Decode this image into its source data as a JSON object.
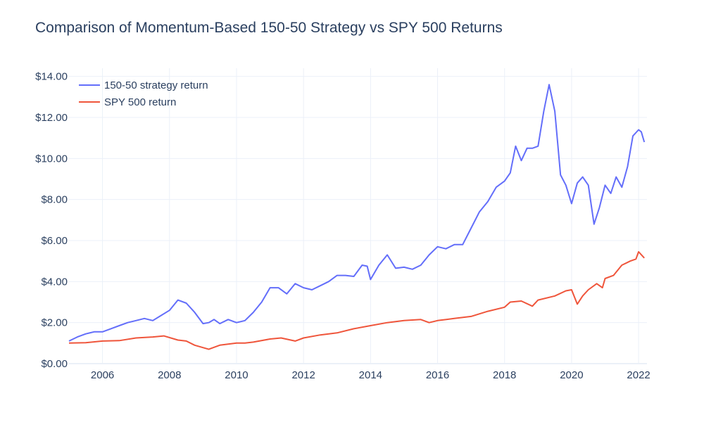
{
  "chart_data": {
    "type": "line",
    "title": "Comparison of Momentum-Based 150-50 Strategy vs SPY 500 Returns",
    "xlabel": "",
    "ylabel": "",
    "xlim": [
      2005.0,
      2022.25
    ],
    "ylim": [
      0,
      14.4
    ],
    "x_ticks": [
      2006,
      2008,
      2010,
      2012,
      2014,
      2016,
      2018,
      2020,
      2022
    ],
    "x_tick_labels": [
      "2006",
      "2008",
      "2010",
      "2012",
      "2014",
      "2016",
      "2018",
      "2020",
      "2022"
    ],
    "y_ticks": [
      0,
      2,
      4,
      6,
      8,
      10,
      12,
      14
    ],
    "y_tick_labels": [
      "$0.00",
      "$2.00",
      "$4.00",
      "$6.00",
      "$8.00",
      "$10.00",
      "$12.00",
      "$14.00"
    ],
    "grid": true,
    "legend_position": "top-left",
    "series": [
      {
        "name": "150-50 strategy return",
        "color": "#636efa",
        "x": [
          2005.0,
          2005.25,
          2005.5,
          2005.75,
          2006.0,
          2006.25,
          2006.5,
          2006.75,
          2007.0,
          2007.25,
          2007.5,
          2007.75,
          2008.0,
          2008.25,
          2008.5,
          2008.75,
          2009.0,
          2009.17,
          2009.33,
          2009.5,
          2009.75,
          2010.0,
          2010.25,
          2010.5,
          2010.75,
          2011.0,
          2011.25,
          2011.5,
          2011.75,
          2012.0,
          2012.25,
          2012.5,
          2012.75,
          2013.0,
          2013.25,
          2013.5,
          2013.75,
          2013.9,
          2014.0,
          2014.25,
          2014.5,
          2014.75,
          2015.0,
          2015.25,
          2015.5,
          2015.75,
          2016.0,
          2016.25,
          2016.5,
          2016.75,
          2017.0,
          2017.25,
          2017.5,
          2017.75,
          2018.0,
          2018.17,
          2018.33,
          2018.5,
          2018.67,
          2018.83,
          2019.0,
          2019.17,
          2019.33,
          2019.5,
          2019.67,
          2019.83,
          2020.0,
          2020.17,
          2020.33,
          2020.5,
          2020.67,
          2020.83,
          2021.0,
          2021.17,
          2021.33,
          2021.5,
          2021.67,
          2021.83,
          2022.0,
          2022.08,
          2022.17
        ],
        "values": [
          1.1,
          1.3,
          1.45,
          1.55,
          1.55,
          1.7,
          1.85,
          2.0,
          2.1,
          2.2,
          2.1,
          2.35,
          2.6,
          3.1,
          2.95,
          2.5,
          1.95,
          2.0,
          2.15,
          1.95,
          2.15,
          2.0,
          2.1,
          2.5,
          3.0,
          3.7,
          3.7,
          3.4,
          3.9,
          3.7,
          3.6,
          3.8,
          4.0,
          4.3,
          4.3,
          4.25,
          4.8,
          4.75,
          4.1,
          4.8,
          5.3,
          4.65,
          4.7,
          4.6,
          4.8,
          5.3,
          5.7,
          5.6,
          5.8,
          5.8,
          6.6,
          7.4,
          7.9,
          8.6,
          8.9,
          9.3,
          10.6,
          9.9,
          10.5,
          10.5,
          10.6,
          12.3,
          13.6,
          12.3,
          9.2,
          8.7,
          7.8,
          8.8,
          9.1,
          8.7,
          6.8,
          7.6,
          8.7,
          8.3,
          9.1,
          8.6,
          9.6,
          11.1,
          11.4,
          11.3,
          10.8
        ]
      },
      {
        "name": "SPY 500 return",
        "color": "#ef553b",
        "x": [
          2005.0,
          2005.5,
          2006.0,
          2006.5,
          2007.0,
          2007.5,
          2007.83,
          2008.25,
          2008.5,
          2008.75,
          2009.17,
          2009.5,
          2010.0,
          2010.25,
          2010.5,
          2011.0,
          2011.33,
          2011.75,
          2012.0,
          2012.5,
          2013.0,
          2013.5,
          2014.0,
          2014.5,
          2015.0,
          2015.5,
          2015.75,
          2016.0,
          2016.5,
          2017.0,
          2017.5,
          2018.0,
          2018.17,
          2018.5,
          2018.83,
          2019.0,
          2019.5,
          2019.83,
          2020.0,
          2020.17,
          2020.33,
          2020.5,
          2020.75,
          2020.92,
          2021.0,
          2021.25,
          2021.5,
          2021.75,
          2021.92,
          2022.0,
          2022.17
        ],
        "values": [
          1.0,
          1.02,
          1.1,
          1.12,
          1.25,
          1.3,
          1.35,
          1.15,
          1.1,
          0.9,
          0.7,
          0.9,
          1.0,
          1.0,
          1.05,
          1.2,
          1.25,
          1.1,
          1.25,
          1.4,
          1.5,
          1.7,
          1.85,
          2.0,
          2.1,
          2.15,
          2.0,
          2.1,
          2.2,
          2.3,
          2.55,
          2.75,
          3.0,
          3.05,
          2.8,
          3.1,
          3.3,
          3.55,
          3.6,
          2.9,
          3.3,
          3.6,
          3.9,
          3.7,
          4.15,
          4.3,
          4.8,
          5.0,
          5.1,
          5.45,
          5.15
        ]
      }
    ]
  }
}
